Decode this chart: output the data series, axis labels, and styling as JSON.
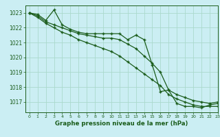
{
  "title": "Graphe pression niveau de la mer (hPa)",
  "background_color": "#cbeef3",
  "grid_color": "#aad9cc",
  "line_color": "#1a5c1a",
  "xlim": [
    -0.5,
    23
  ],
  "ylim": [
    1016.3,
    1023.5
  ],
  "yticks": [
    1017,
    1018,
    1019,
    1020,
    1021,
    1022,
    1023
  ],
  "xticks": [
    0,
    1,
    2,
    3,
    4,
    5,
    6,
    7,
    8,
    9,
    10,
    11,
    12,
    13,
    14,
    15,
    16,
    17,
    18,
    19,
    20,
    21,
    22,
    23
  ],
  "series1": [
    1023.0,
    1022.9,
    1022.5,
    1023.2,
    1022.2,
    1021.9,
    1021.7,
    1021.6,
    1021.6,
    1021.6,
    1021.6,
    1021.6,
    1021.2,
    1021.5,
    1021.2,
    1019.5,
    1017.7,
    1017.8,
    1016.9,
    1016.7,
    1016.7,
    1016.6,
    1016.8,
    1016.9
  ],
  "series2": [
    1023.0,
    1022.8,
    1022.4,
    1022.2,
    1022.0,
    1021.8,
    1021.6,
    1021.5,
    1021.4,
    1021.3,
    1021.3,
    1021.2,
    1020.9,
    1020.6,
    1020.1,
    1019.6,
    1019.0,
    1017.8,
    1017.5,
    1017.3,
    1017.1,
    1017.0,
    1016.9,
    1017.0
  ],
  "series3": [
    1023.0,
    1022.7,
    1022.3,
    1022.0,
    1021.7,
    1021.5,
    1021.2,
    1021.0,
    1020.8,
    1020.6,
    1020.4,
    1020.1,
    1019.7,
    1019.3,
    1018.9,
    1018.5,
    1018.1,
    1017.5,
    1017.2,
    1017.0,
    1016.8,
    1016.7,
    1016.7,
    1016.7
  ]
}
